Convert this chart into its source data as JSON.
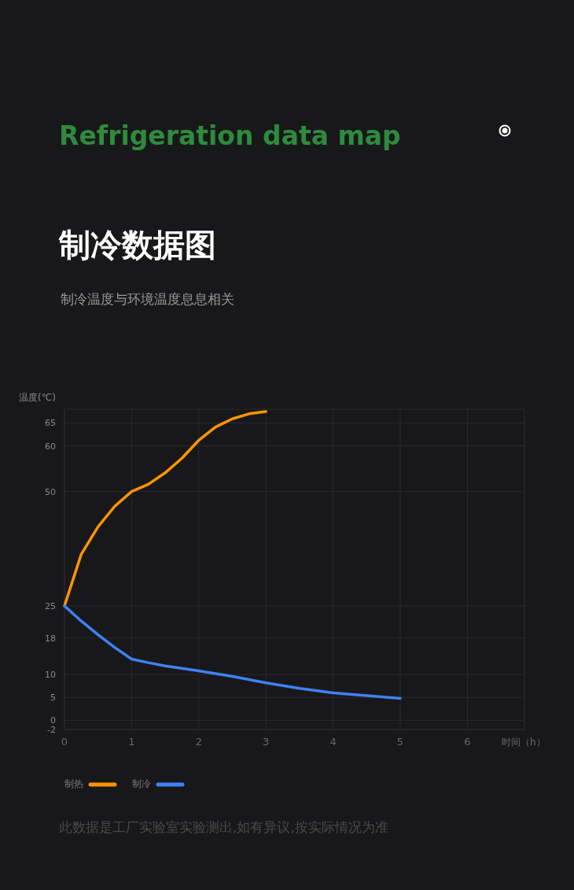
{
  "chart_data": {
    "type": "line",
    "title": "Refrigeration data map",
    "subtitle": "制冷数据图",
    "annotations": [
      "制冷温度与环境温度息息相关",
      "此数据是工厂实验室实验测出,如有异议,按实际情况为准"
    ],
    "xlabel": "时间（h）",
    "ylabel": "温度(℃)",
    "xlim": [
      0,
      6.85
    ],
    "xticks": [
      0,
      1,
      2,
      3,
      4,
      5,
      6
    ],
    "ylim": [
      -2,
      68
    ],
    "yticks": [
      -2,
      0,
      5,
      10,
      18,
      25,
      50,
      60,
      65
    ],
    "grid": true,
    "legend": "bottom left",
    "marker": "none",
    "line_style": "solid",
    "series": [
      {
        "name": "制热",
        "color": "#ff9500",
        "x": [
          0,
          0.25,
          0.5,
          0.75,
          1,
          1.25,
          1.5,
          1.75,
          2,
          2.25,
          2.5,
          2.75,
          3
        ],
        "values": [
          25,
          36.3,
          42.3,
          46.8,
          50,
          51.6,
          54.1,
          57.3,
          61.2,
          64.1,
          65.9,
          67,
          67.5
        ]
      },
      {
        "name": "制冷",
        "color": "#3d82f5",
        "x": [
          0,
          0.25,
          0.5,
          0.75,
          1,
          1.25,
          1.5,
          2,
          2.5,
          3,
          3.5,
          4,
          4.25,
          5
        ],
        "values": [
          25,
          21.7,
          18.7,
          15.9,
          13.4,
          12.6,
          11.9,
          10.8,
          9.6,
          8.2,
          7,
          6,
          5.7,
          4.8
        ]
      }
    ]
  }
}
